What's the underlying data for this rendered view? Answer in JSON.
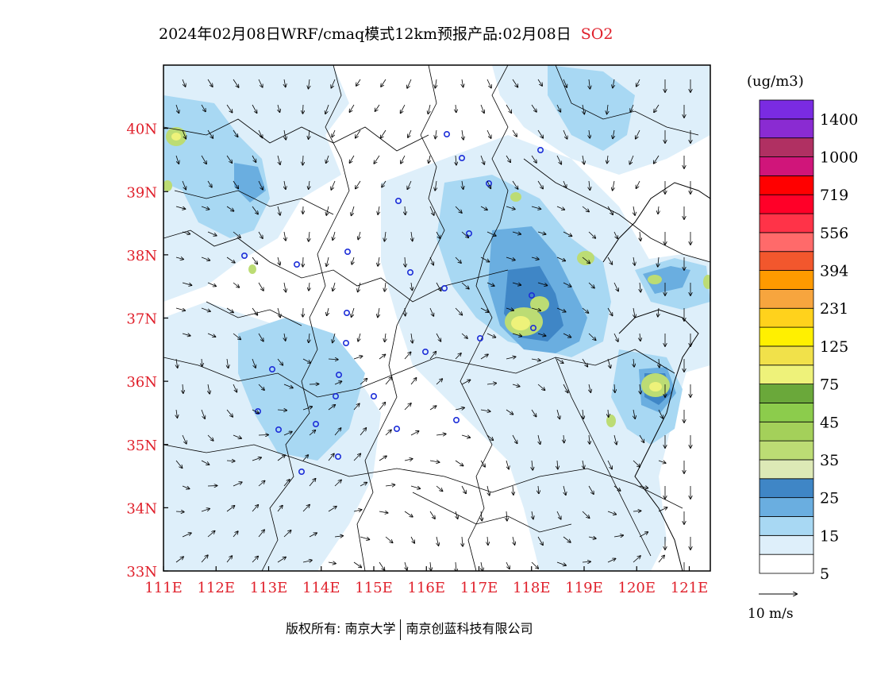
{
  "title": {
    "text": "2024年02月08日WRF/cmaq模式12km预报产品:02月08日",
    "species": "SO2"
  },
  "map": {
    "lon_labels": [
      "111E",
      "112E",
      "113E",
      "114E",
      "115E",
      "116E",
      "117E",
      "118E",
      "119E",
      "120E",
      "121E"
    ],
    "lat_labels": [
      "40N",
      "39N",
      "38N",
      "37N",
      "36N",
      "35N",
      "34N",
      "33N"
    ],
    "lon_range": [
      111,
      121.4
    ],
    "lat_range": [
      33,
      41
    ],
    "axis_label_color": "#e0202b"
  },
  "legend": {
    "unit": "(ug/m3)",
    "labels": [
      "1400",
      "1000",
      "719",
      "556",
      "394",
      "231",
      "125",
      "75",
      "45",
      "35",
      "25",
      "15",
      "5"
    ],
    "colors": [
      "#ffffff",
      "#deeffa",
      "#a8d8f3",
      "#6aaee0",
      "#3f86c6",
      "#dde9b6",
      "#bcdc74",
      "#a4d05a",
      "#8ccc4c",
      "#6aa83a",
      "#eef27a",
      "#f1e14a",
      "#fff000",
      "#ffd21c",
      "#f7a53e",
      "#ff9a00",
      "#f2572d",
      "#ff6a6a",
      "#ff3348",
      "#ff0028",
      "#ff0000",
      "#d0157a",
      "#b03062",
      "#8a2bd2",
      "#7a2be2"
    ]
  },
  "wind": {
    "reference_label": "10 m/s"
  },
  "footer": {
    "copyright": "版权所有: 南京大学",
    "company": "南京创蓝科技有限公司"
  }
}
